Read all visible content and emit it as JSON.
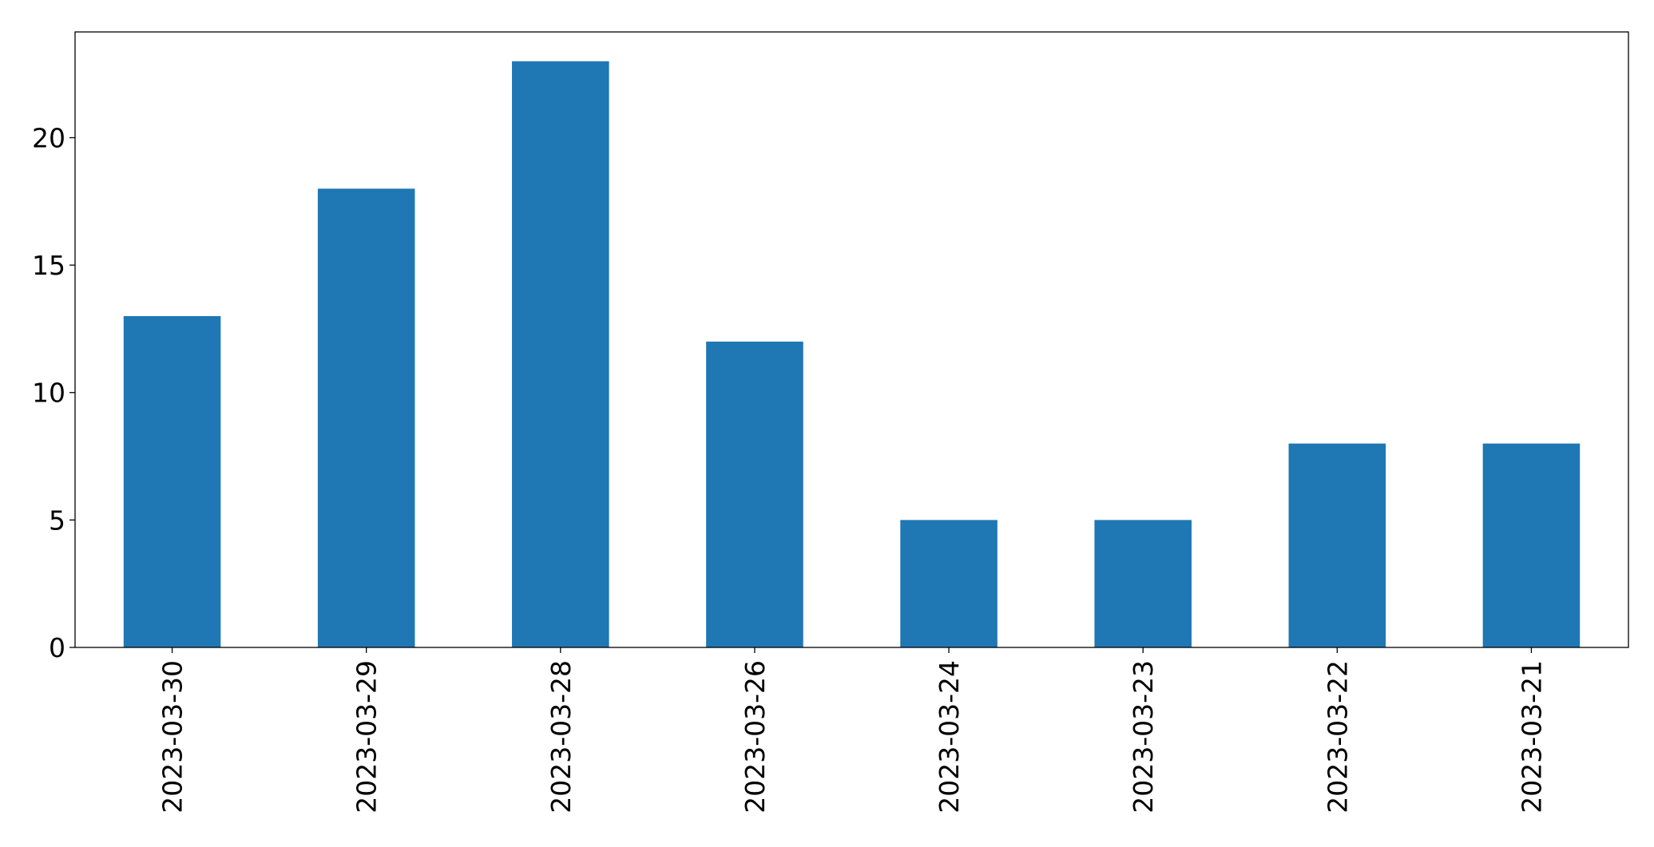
{
  "chart_data": {
    "type": "bar",
    "categories": [
      "2023-03-30",
      "2023-03-29",
      "2023-03-28",
      "2023-03-26",
      "2023-03-24",
      "2023-03-23",
      "2023-03-22",
      "2023-03-21"
    ],
    "values": [
      13,
      18,
      23,
      12,
      5,
      5,
      8,
      8
    ],
    "ylim": [
      0,
      24.15
    ],
    "yticks": [
      0,
      5,
      10,
      15,
      20
    ],
    "title": "",
    "xlabel": "",
    "ylabel": "",
    "bar_color": "#1f77b4",
    "grid": false,
    "legend": false,
    "xtick_rotation": "vertical"
  }
}
